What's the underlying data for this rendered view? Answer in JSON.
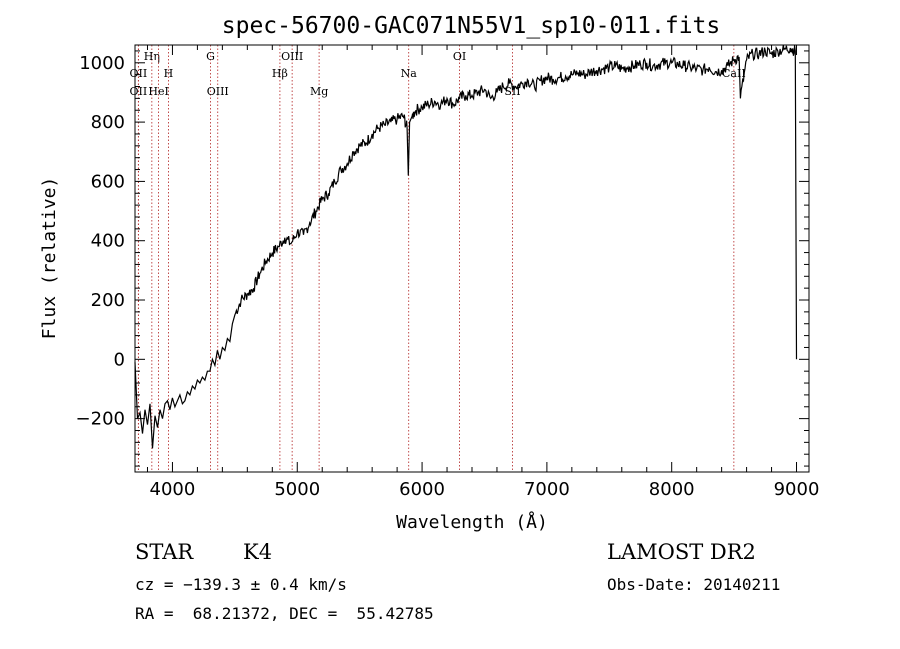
{
  "chart_data": {
    "type": "line",
    "title": "spec-56700-GAC071N55V1_sp10-011.fits",
    "xlabel": "Wavelength (Å)",
    "ylabel": "Flux (relative)",
    "xlim": [
      3700,
      9100
    ],
    "ylim": [
      -380,
      1060
    ],
    "xticks": [
      4000,
      5000,
      6000,
      7000,
      8000,
      9000
    ],
    "yticks": [
      -200,
      0,
      200,
      400,
      600,
      800,
      1000
    ],
    "ytick_labels": [
      "−200",
      "0",
      "200",
      "400",
      "600",
      "800",
      "1000"
    ],
    "series": [
      {
        "x": [
          3700,
          3720,
          3740,
          3760,
          3780,
          3800,
          3820,
          3840,
          3860,
          3880,
          3900,
          3920,
          3940,
          3960,
          3980,
          4000,
          4020,
          4040,
          4060,
          4080,
          4100,
          4120,
          4140,
          4160,
          4180,
          4200,
          4220,
          4240,
          4260,
          4280,
          4300,
          4320,
          4340,
          4360,
          4380,
          4400,
          4420,
          4440,
          4460,
          4480,
          4500,
          4550,
          4600,
          4650,
          4700,
          4750,
          4800,
          4850,
          4900,
          4950,
          5000,
          5050,
          5100,
          5150,
          5200,
          5250,
          5300,
          5350,
          5400,
          5450,
          5500,
          5550,
          5600,
          5650,
          5700,
          5750,
          5800,
          5850,
          5880,
          5890,
          5900,
          5920,
          5950,
          6000,
          6050,
          6100,
          6150,
          6200,
          6250,
          6300,
          6350,
          6400,
          6450,
          6500,
          6550,
          6600,
          6650,
          6700,
          6750,
          6800,
          6850,
          6900,
          6950,
          7000,
          7050,
          7100,
          7150,
          7200,
          7250,
          7300,
          7350,
          7400,
          7450,
          7500,
          7550,
          7600,
          7650,
          7700,
          7750,
          7800,
          7850,
          7900,
          7950,
          8000,
          8050,
          8100,
          8150,
          8200,
          8250,
          8300,
          8350,
          8400,
          8450,
          8500,
          8540,
          8550,
          8600,
          8650,
          8700,
          8750,
          8800,
          8850,
          8900,
          8950,
          8990,
          9000
        ],
        "y": [
          -10,
          -200,
          -180,
          -250,
          -170,
          -220,
          -150,
          -300,
          -190,
          -230,
          -170,
          -200,
          -150,
          -140,
          -170,
          -130,
          -160,
          -140,
          -120,
          -150,
          -140,
          -110,
          -120,
          -90,
          -100,
          -70,
          -80,
          -60,
          -70,
          -40,
          -40,
          0,
          -20,
          30,
          0,
          40,
          30,
          70,
          60,
          120,
          150,
          200,
          220,
          240,
          290,
          330,
          360,
          380,
          410,
          390,
          430,
          420,
          460,
          500,
          540,
          560,
          600,
          640,
          660,
          700,
          720,
          730,
          760,
          780,
          790,
          800,
          810,
          820,
          780,
          620,
          800,
          820,
          840,
          850,
          860,
          870,
          860,
          880,
          860,
          880,
          890,
          890,
          900,
          910,
          880,
          900,
          920,
          930,
          920,
          930,
          940,
          920,
          940,
          950,
          945,
          950,
          955,
          960,
          965,
          960,
          970,
          975,
          980,
          985,
          990,
          980,
          985,
          990,
          995,
          1000,
          990,
          995,
          1000,
          1000,
          995,
          990,
          985,
          980,
          975,
          985,
          970,
          975,
          990,
          1010,
          1020,
          880,
          1010,
          1030,
          1030,
          1040,
          1030,
          1040,
          1045,
          1050,
          1040,
          0
        ]
      }
    ],
    "lines": [
      {
        "name": "Hη",
        "wave": 3835,
        "row": 1
      },
      {
        "name": "OII",
        "wave": 3727,
        "row": 2
      },
      {
        "name": "H",
        "wave": 3968,
        "row": 2
      },
      {
        "name": "OII",
        "wave": 3727,
        "row": 3
      },
      {
        "name": "HeI",
        "wave": 3889,
        "row": 3
      },
      {
        "name": "G",
        "wave": 4305,
        "row": 1
      },
      {
        "name": "OIII",
        "wave": 4363,
        "row": 3
      },
      {
        "name": "OIII",
        "wave": 4959,
        "row": 1
      },
      {
        "name": "Hβ",
        "wave": 4861,
        "row": 2
      },
      {
        "name": "Mg",
        "wave": 5175,
        "row": 3
      },
      {
        "name": "Na",
        "wave": 5893,
        "row": 2
      },
      {
        "name": "OI",
        "wave": 6300,
        "row": 1
      },
      {
        "name": "SII",
        "wave": 6724,
        "row": 3
      },
      {
        "name": "CaII",
        "wave": 8498,
        "row": 2
      }
    ]
  },
  "info": {
    "class": "STAR",
    "subclass": "K4",
    "survey": "LAMOST DR2",
    "cz": "cz = −139.3 ± 0.4 km/s",
    "obs_date": "Obs-Date: 20140211",
    "radec": "RA =  68.21372, DEC =  55.42785"
  },
  "colors": {
    "axis": "#000000",
    "spectrum": "#000000",
    "line_marker": "#b22222"
  }
}
